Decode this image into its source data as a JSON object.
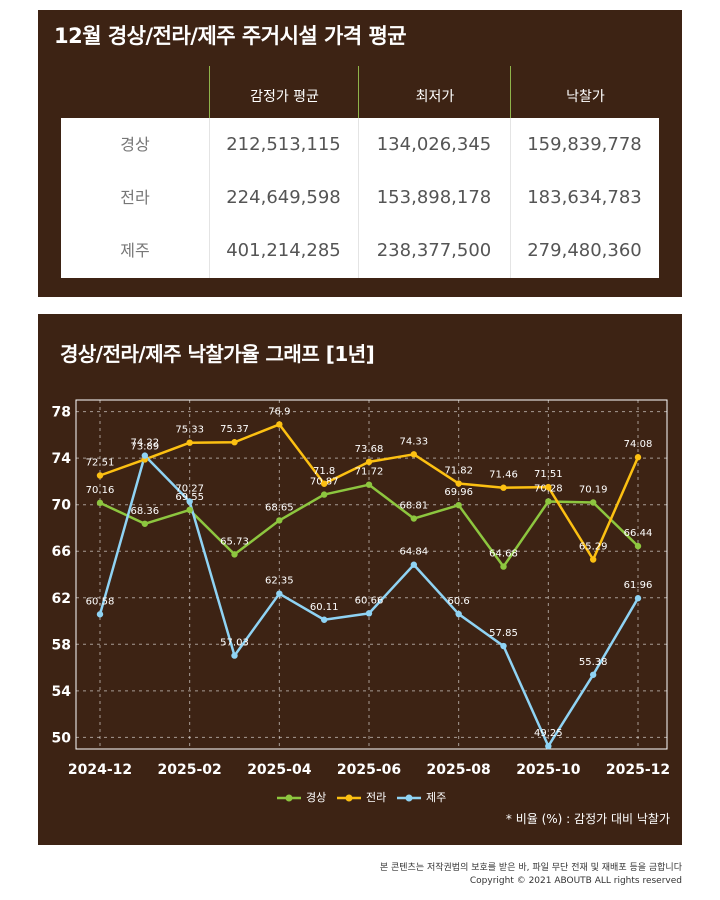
{
  "table": {
    "title": "12월 경상/전라/제주 주거시설 가격 평균",
    "headers": [
      "감정가 평균",
      "최저가",
      "낙찰가"
    ],
    "rows": [
      {
        "region": "경상",
        "values": [
          "212,513,115",
          "134,026,345",
          "159,839,778"
        ]
      },
      {
        "region": "전라",
        "values": [
          "224,649,598",
          "153,898,178",
          "183,634,783"
        ]
      },
      {
        "region": "제주",
        "values": [
          "401,214,285",
          "238,377,500",
          "279,480,360"
        ]
      }
    ]
  },
  "chart_title": "경상/전라/제주 낙찰가율 그래프 [1년]",
  "note": "* 비율 (%) : 감정가 대비 낙찰가",
  "footer": {
    "line1": "본 콘텐츠는 저작권법의 보호를 받은 바, 파일 무단 전재 및 재배포 등을 금합니다",
    "line2": "Copyright © 2021 ABOUTB ALL rights reserved"
  },
  "chart_data": {
    "type": "line",
    "title": "경상/전라/제주 낙찰가율 그래프 [1년]",
    "x": [
      "2024-12",
      "2025-01",
      "2025-02",
      "2025-03",
      "2025-04",
      "2025-05",
      "2025-06",
      "2025-07",
      "2025-08",
      "2025-09",
      "2025-10",
      "2025-11",
      "2025-12"
    ],
    "xtick_labels": [
      "2024-12",
      "2025-02",
      "2025-04",
      "2025-06",
      "2025-08",
      "2025-10",
      "2025-12"
    ],
    "yticks": [
      50,
      54,
      58,
      62,
      66,
      70,
      74,
      78
    ],
    "ylim": [
      49,
      79
    ],
    "grid": true,
    "legend_position": "bottom",
    "series": [
      {
        "name": "경상",
        "color": "#8dc63f",
        "values": [
          70.16,
          68.36,
          69.55,
          65.73,
          68.65,
          70.87,
          71.72,
          68.81,
          69.96,
          64.68,
          70.28,
          70.19,
          66.44
        ]
      },
      {
        "name": "전라",
        "color": "#fcc012",
        "values": [
          72.51,
          73.89,
          75.33,
          75.37,
          76.9,
          71.8,
          73.68,
          74.33,
          71.82,
          71.46,
          71.51,
          65.29,
          74.08
        ]
      },
      {
        "name": "제주",
        "color": "#8fd3f4",
        "values": [
          60.58,
          74.22,
          70.27,
          57.03,
          62.35,
          60.11,
          60.66,
          64.84,
          60.6,
          57.85,
          49.25,
          55.38,
          61.96
        ]
      }
    ]
  }
}
